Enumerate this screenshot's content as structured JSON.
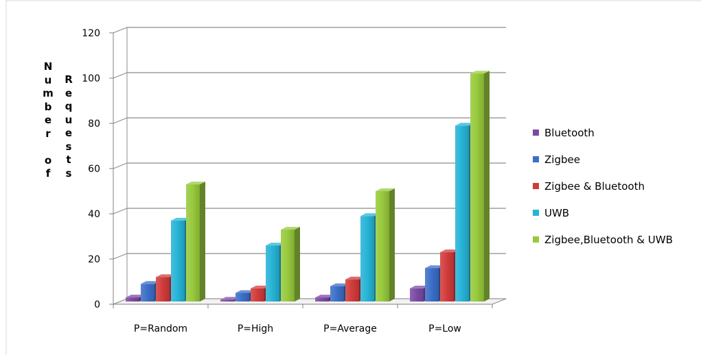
{
  "chart_data": {
    "type": "bar",
    "title": "",
    "xlabel": "",
    "ylabel_left": "Number of",
    "ylabel_right": "Requests",
    "categories": [
      "P=Random",
      "P=High",
      "P=Average",
      "P=Low"
    ],
    "yticks": [
      "0",
      "20",
      "40",
      "60",
      "80",
      "100",
      "120"
    ],
    "ylim": [
      0,
      120
    ],
    "grid": true,
    "legend_position": "right",
    "series": [
      {
        "name": "Bluetooth",
        "color": "#7b4aa3",
        "values": [
          3,
          2,
          3,
          7
        ]
      },
      {
        "name": "Zigbee",
        "color": "#3b6ec8",
        "values": [
          9,
          5,
          8,
          16
        ]
      },
      {
        "name": "Zigbee & Bluetooth",
        "color": "#d13b3b",
        "values": [
          12,
          7,
          11,
          23
        ]
      },
      {
        "name": "UWB",
        "color": "#26b3d6",
        "values": [
          37,
          26,
          39,
          79
        ]
      },
      {
        "name": "Zigbee,Bluetooth & UWB",
        "color": "#97c93c",
        "values": [
          53,
          33,
          50,
          102
        ]
      }
    ]
  }
}
